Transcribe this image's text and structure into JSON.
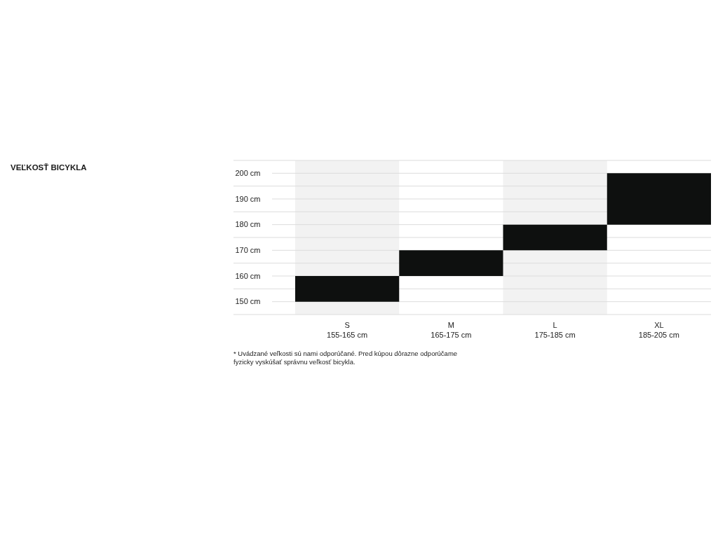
{
  "chart_data": {
    "type": "bar",
    "title": "VEĽKOSŤ BICYKLA",
    "categories": [
      "S 155-165 cm",
      "M 165-175 cm",
      "L 175-185 cm",
      "XL 185-205 cm"
    ],
    "base": [
      150,
      160,
      170,
      180
    ],
    "values": [
      10,
      10,
      10,
      20
    ],
    "color": "#0e100f",
    "ylim": [
      145,
      205
    ],
    "yticks": [
      {
        "value": 145,
        "label": null
      },
      {
        "value": 150,
        "label": "150 cm"
      },
      {
        "value": 155,
        "label": null
      },
      {
        "value": 160,
        "label": "160 cm"
      },
      {
        "value": 165,
        "label": null
      },
      {
        "value": 170,
        "label": "170 cm"
      },
      {
        "value": 175,
        "label": null
      },
      {
        "value": 180,
        "label": "180 cm"
      },
      {
        "value": 185,
        "label": null
      },
      {
        "value": 190,
        "label": "190 cm"
      },
      {
        "value": 195,
        "label": null
      },
      {
        "value": 200,
        "label": "200 cm"
      },
      {
        "value": 205,
        "label": null
      }
    ],
    "grid": "y",
    "bands": [
      {
        "axis": "x",
        "from": "S 155-165 cm",
        "to": "S 155-165 cm",
        "color": "#f2f2f2"
      },
      {
        "axis": "x",
        "from": "L 175-185 cm",
        "to": "L 175-185 cm",
        "color": "#f2f2f2"
      }
    ],
    "annotations": [
      "* Uvádzané veľkosti sú nami odporúčané. Pred kúpou dôrazne odporúčame fyzicky vyskúšať správnu veľkosť bicykla."
    ]
  }
}
